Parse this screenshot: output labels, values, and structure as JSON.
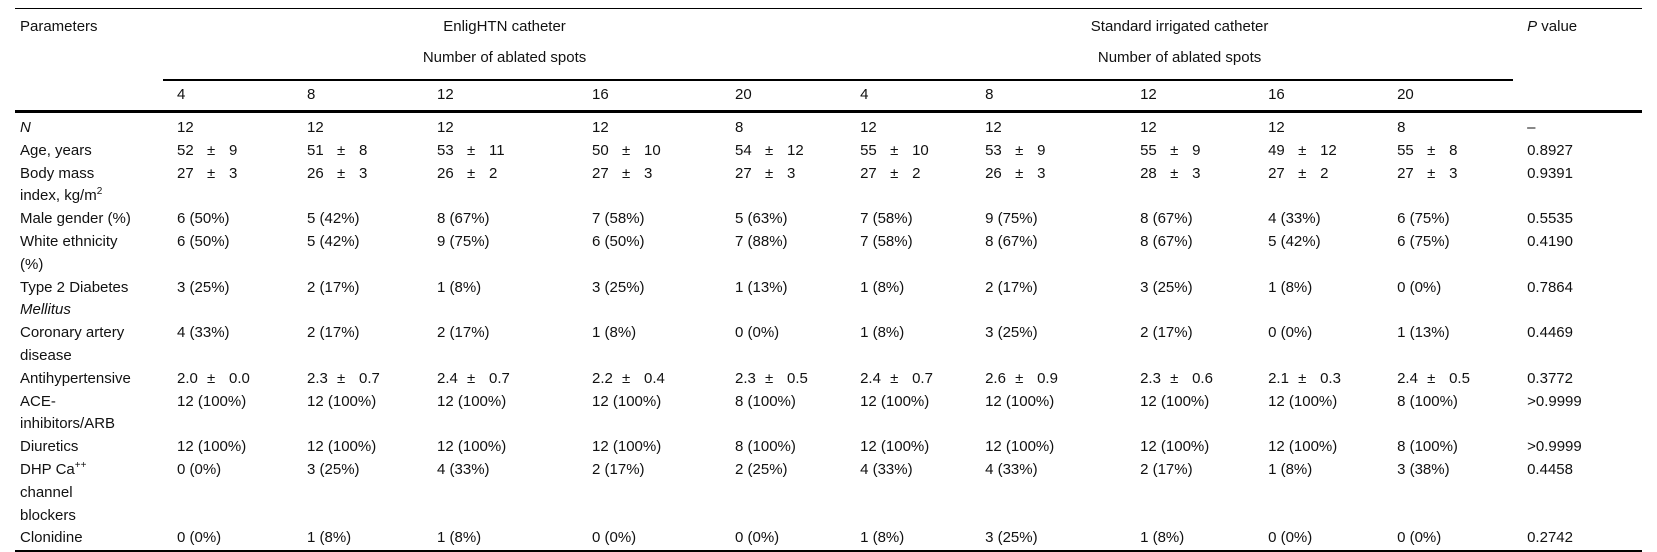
{
  "symbols": {
    "plus_minus": "±"
  },
  "colors": {
    "text": "#111111",
    "rule": "#000000",
    "background": "#ffffff"
  },
  "header": {
    "parameters": "Parameters",
    "group1": "EnligHTN catheter",
    "group2": "Standard irrigated catheter",
    "subheader": "Number of ablated spots",
    "spot_counts": [
      "4",
      "8",
      "12",
      "16",
      "20",
      "4",
      "8",
      "12",
      "16",
      "20"
    ],
    "p_value": {
      "italic": "P",
      "rest": " value"
    }
  },
  "table": {
    "rows": [
      {
        "label": [
          {
            "text": "N",
            "italic": true
          }
        ],
        "cells": [
          "12",
          "12",
          "12",
          "12",
          "8",
          "12",
          "12",
          "12",
          "12",
          "8"
        ],
        "p": "–"
      },
      {
        "label": [
          {
            "text": "Age, years"
          }
        ],
        "cells": [
          {
            "mean": "52",
            "sd": "9"
          },
          {
            "mean": "51",
            "sd": "8"
          },
          {
            "mean": "53",
            "sd": "11"
          },
          {
            "mean": "50",
            "sd": "10"
          },
          {
            "mean": "54",
            "sd": "12"
          },
          {
            "mean": "55",
            "sd": "10"
          },
          {
            "mean": "53",
            "sd": "9"
          },
          {
            "mean": "55",
            "sd": "9"
          },
          {
            "mean": "49",
            "sd": "12"
          },
          {
            "mean": "55",
            "sd": "8"
          }
        ],
        "p": "0.8927"
      },
      {
        "label": [
          {
            "text": "Body mass\nindex, kg/m"
          },
          {
            "text": "2",
            "sup": true
          }
        ],
        "cells": [
          {
            "mean": "27",
            "sd": "3"
          },
          {
            "mean": "26",
            "sd": "3"
          },
          {
            "mean": "26",
            "sd": "2"
          },
          {
            "mean": "27",
            "sd": "3"
          },
          {
            "mean": "27",
            "sd": "3"
          },
          {
            "mean": "27",
            "sd": "2"
          },
          {
            "mean": "26",
            "sd": "3"
          },
          {
            "mean": "28",
            "sd": "3"
          },
          {
            "mean": "27",
            "sd": "2"
          },
          {
            "mean": "27",
            "sd": "3"
          }
        ],
        "p": "0.9391"
      },
      {
        "label": [
          {
            "text": "Male gender (%)"
          }
        ],
        "cells": [
          "6 (50%)",
          "5 (42%)",
          "8 (67%)",
          "7 (58%)",
          "5 (63%)",
          "7 (58%)",
          "9 (75%)",
          "8 (67%)",
          "4 (33%)",
          "6 (75%)"
        ],
        "p": "0.5535"
      },
      {
        "label": [
          {
            "text": "White ethnicity\n(%)"
          }
        ],
        "cells": [
          "6 (50%)",
          "5 (42%)",
          "9 (75%)",
          "6 (50%)",
          "7 (88%)",
          "7 (58%)",
          "8 (67%)",
          "8 (67%)",
          "5 (42%)",
          "6 (75%)"
        ],
        "p": "0.4190"
      },
      {
        "label": [
          {
            "text": "Type 2 Diabetes\n"
          },
          {
            "text": "Mellitus",
            "italic": true
          }
        ],
        "cells": [
          "3 (25%)",
          "2 (17%)",
          "1 (8%)",
          "3 (25%)",
          "1 (13%)",
          "1 (8%)",
          "2 (17%)",
          "3 (25%)",
          "1 (8%)",
          "0 (0%)"
        ],
        "p": "0.7864"
      },
      {
        "label": [
          {
            "text": "Coronary artery\ndisease"
          }
        ],
        "cells": [
          "4 (33%)",
          "2 (17%)",
          "2 (17%)",
          "1 (8%)",
          "0 (0%)",
          "1 (8%)",
          "3 (25%)",
          "2 (17%)",
          "0 (0%)",
          "1 (13%)"
        ],
        "p": "0.4469"
      },
      {
        "label": [
          {
            "text": "Antihypertensive"
          }
        ],
        "cells": [
          {
            "mean": "2.0",
            "sd": "0.0"
          },
          {
            "mean": "2.3",
            "sd": "0.7"
          },
          {
            "mean": "2.4",
            "sd": "0.7"
          },
          {
            "mean": "2.2",
            "sd": "0.4"
          },
          {
            "mean": "2.3",
            "sd": "0.5"
          },
          {
            "mean": "2.4",
            "sd": "0.7"
          },
          {
            "mean": "2.6",
            "sd": "0.9"
          },
          {
            "mean": "2.3",
            "sd": "0.6"
          },
          {
            "mean": "2.1",
            "sd": "0.3"
          },
          {
            "mean": "2.4",
            "sd": "0.5"
          }
        ],
        "p": "0.3772"
      },
      {
        "label": [
          {
            "text": "ACE-\ninhibitors/ARB"
          }
        ],
        "cells": [
          "12 (100%)",
          "12 (100%)",
          "12 (100%)",
          "12 (100%)",
          "8 (100%)",
          "12 (100%)",
          "12 (100%)",
          "12 (100%)",
          "12 (100%)",
          "8 (100%)"
        ],
        "p": ">0.9999"
      },
      {
        "label": [
          {
            "text": "Diuretics"
          }
        ],
        "cells": [
          "12 (100%)",
          "12 (100%)",
          "12 (100%)",
          "12 (100%)",
          "8 (100%)",
          "12 (100%)",
          "12 (100%)",
          "12 (100%)",
          "12 (100%)",
          "8 (100%)"
        ],
        "p": ">0.9999"
      },
      {
        "label": [
          {
            "text": "DHP Ca"
          },
          {
            "text": "++",
            "sup": true
          },
          {
            "text": "\nchannel\nblockers"
          }
        ],
        "cells": [
          "0 (0%)",
          "3 (25%)",
          "4 (33%)",
          "2 (17%)",
          "2 (25%)",
          "4 (33%)",
          "4 (33%)",
          "2 (17%)",
          "1 (8%)",
          "3 (38%)"
        ],
        "p": "0.4458"
      },
      {
        "label": [
          {
            "text": "Clonidine"
          }
        ],
        "cells": [
          "0 (0%)",
          "1 (8%)",
          "1 (8%)",
          "0 (0%)",
          "0 (0%)",
          "1 (8%)",
          "3 (25%)",
          "1 (8%)",
          "0 (0%)",
          "0 (0%)"
        ],
        "p": "0.2742"
      }
    ]
  }
}
